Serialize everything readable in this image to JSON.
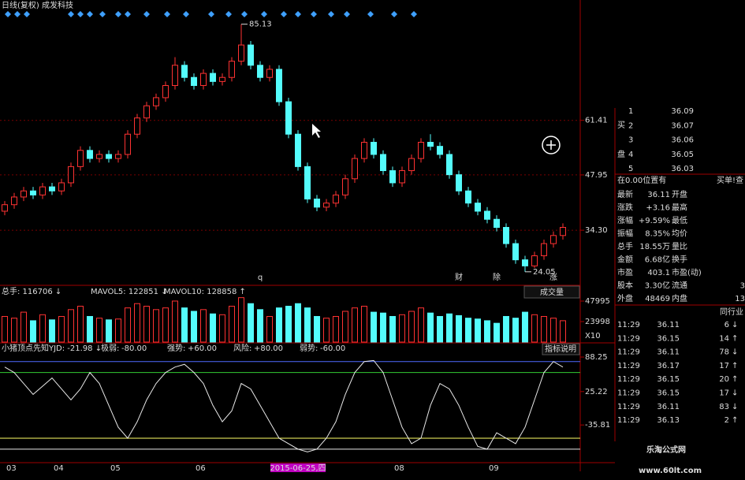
{
  "header": {
    "title": "日线(复权)  成发科技"
  },
  "price_chart": {
    "type": "candlestick",
    "ylim": [
      21.1,
      91.1
    ],
    "yticks": [
      61.41,
      47.95,
      {
        "value": 34.3,
        "label": "34.30"
      }
    ],
    "grid": true,
    "up_color": "#ff3232",
    "down_color": "#54fcfc",
    "candles": [
      [
        39,
        41.5,
        38,
        40.6
      ],
      [
        40.6,
        43.5,
        39.6,
        42.5
      ],
      [
        42.5,
        45,
        41.5,
        44
      ],
      [
        44,
        45,
        42,
        43
      ],
      [
        43,
        46,
        42,
        45
      ],
      [
        45,
        46,
        43,
        44
      ],
      [
        44,
        47,
        43,
        46
      ],
      [
        46,
        51,
        45,
        50
      ],
      [
        50,
        55,
        49,
        54
      ],
      [
        54,
        55,
        51,
        52
      ],
      [
        52,
        54,
        51,
        53
      ],
      [
        53,
        54,
        51,
        52
      ],
      [
        52,
        54,
        51,
        53
      ],
      [
        53,
        59,
        52,
        58
      ],
      [
        58,
        63,
        57,
        62
      ],
      [
        62,
        66,
        61,
        65
      ],
      [
        65,
        68,
        64,
        67
      ],
      [
        67,
        71,
        66,
        70
      ],
      [
        70,
        77,
        69,
        75
      ],
      [
        75,
        76,
        71,
        72
      ],
      [
        72,
        73,
        69,
        70
      ],
      [
        70,
        74,
        69,
        73
      ],
      [
        73,
        74,
        70,
        71
      ],
      [
        71,
        73,
        70,
        72
      ],
      [
        72,
        77,
        71,
        76
      ],
      [
        76,
        85.13,
        75,
        80
      ],
      [
        80,
        81,
        74,
        75
      ],
      [
        75,
        76,
        71,
        72
      ],
      [
        72,
        75,
        71,
        74
      ],
      [
        74,
        75,
        65,
        66
      ],
      [
        66,
        67,
        57,
        58
      ],
      [
        58,
        59,
        49,
        50
      ],
      [
        50,
        51,
        41,
        42
      ],
      [
        42,
        43,
        39,
        40
      ],
      [
        40,
        42,
        39,
        41
      ],
      [
        41,
        44,
        40,
        43
      ],
      [
        43,
        48,
        42,
        47
      ],
      [
        47,
        53,
        46,
        52
      ],
      [
        52,
        57,
        51,
        56
      ],
      [
        56,
        57,
        52,
        53
      ],
      [
        53,
        54,
        48,
        49
      ],
      [
        49,
        50,
        45,
        46
      ],
      [
        46,
        50,
        45,
        49
      ],
      [
        49,
        53,
        48,
        52
      ],
      [
        52,
        57,
        51,
        56
      ],
      [
        56,
        58,
        54,
        55
      ],
      [
        55,
        56,
        52,
        53
      ],
      [
        53,
        54,
        47,
        48
      ],
      [
        48,
        49,
        43,
        44
      ],
      [
        44,
        45,
        40,
        41
      ],
      [
        41,
        42,
        38,
        39
      ],
      [
        39,
        40,
        36,
        37
      ],
      [
        37,
        38,
        34,
        35
      ],
      [
        35,
        36,
        30,
        31
      ],
      [
        31,
        32,
        26,
        27
      ],
      [
        27,
        28,
        24.05,
        25.5
      ],
      [
        25.5,
        29,
        25,
        28
      ],
      [
        28,
        32,
        27,
        31
      ],
      [
        31,
        34,
        30,
        33
      ],
      [
        33,
        36,
        32,
        35
      ]
    ],
    "categories": [
      "03",
      null,
      null,
      null,
      null,
      "04",
      null,
      null,
      null,
      null,
      null,
      "05",
      null,
      null,
      null,
      null,
      null,
      null,
      null,
      null,
      "06",
      null,
      null,
      null,
      null,
      null,
      null,
      null,
      null,
      null,
      null,
      "2015-06-25,四",
      null,
      null,
      null,
      null,
      null,
      null,
      null,
      null,
      null,
      "08",
      null,
      null,
      null,
      null,
      null,
      null,
      null,
      null,
      null,
      "09",
      null,
      null,
      null,
      null,
      null,
      null,
      null,
      null
    ],
    "events": [
      null,
      null,
      null,
      null,
      null,
      null,
      null,
      null,
      null,
      null,
      null,
      null,
      null,
      null,
      null,
      null,
      null,
      null,
      null,
      null,
      null,
      null,
      null,
      null,
      null,
      null,
      null,
      "q",
      null,
      null,
      null,
      null,
      null,
      null,
      null,
      null,
      null,
      null,
      null,
      null,
      null,
      null,
      null,
      null,
      null,
      null,
      null,
      null,
      "财",
      null,
      null,
      null,
      "除",
      null,
      null,
      null,
      null,
      null,
      "涨",
      null
    ]
  },
  "volume_panel": {
    "header": [
      {
        "text": "总手: 116706 ↓",
        "color": "#dddddd"
      },
      {
        "text": "MAVOL5: 122851 ↓",
        "color": "#ffff66"
      },
      {
        "text": "MAVOL10: 128858 ↑",
        "color": "#ffffff"
      }
    ],
    "button": "成交量",
    "unit": "X10",
    "ylim": [
      0,
      60900
    ],
    "yticks": [
      47995,
      23998
    ],
    "values": [
      30000,
      28000,
      35000,
      25000,
      32000,
      26000,
      30000,
      38000,
      42000,
      30000,
      28000,
      26000,
      27000,
      40000,
      45000,
      42000,
      38000,
      40000,
      48000,
      40000,
      36000,
      38000,
      33000,
      32000,
      42000,
      52000,
      45000,
      38000,
      30000,
      40000,
      42000,
      45000,
      40000,
      30000,
      28000,
      30000,
      36000,
      40000,
      42000,
      35000,
      34000,
      30000,
      32000,
      36000,
      40000,
      34000,
      30000,
      33000,
      31000,
      28000,
      27000,
      25000,
      22000,
      30000,
      28000,
      35000,
      32000,
      30000,
      28000,
      25000
    ]
  },
  "indicator_panel": {
    "name": "小猪顶点先知",
    "readout": "YJD: -21.98 ↓",
    "button": "指标说明",
    "ylim": [
      -109,
      107
    ],
    "yticks": [
      88.25,
      25.22,
      -35.81
    ],
    "line_color": "#e8e8e8",
    "levels": [
      {
        "name": "极弱: ",
        "level": {
          "value": -80,
          "label": "-80.00"
        },
        "color": "#e8e8e8"
      },
      {
        "name": "强势: ",
        "level": {
          "value": 60,
          "label": "+60.00"
        },
        "color": "#33cc33"
      },
      {
        "name": "风险: ",
        "level": {
          "value": 80,
          "label": "+80.00"
        },
        "color": "#4f6bff"
      },
      {
        "name": "弱势: ",
        "level": {
          "value": -60,
          "label": "-60.00"
        },
        "color": "#ffff66"
      }
    ],
    "values": [
      70,
      60,
      40,
      20,
      35,
      50,
      30,
      10,
      30,
      60,
      40,
      0,
      -40,
      -60,
      -30,
      10,
      40,
      60,
      70,
      75,
      60,
      40,
      0,
      -30,
      -10,
      40,
      30,
      0,
      -30,
      -60,
      -70,
      -80,
      -85,
      -80,
      -60,
      -30,
      20,
      60,
      80,
      82,
      60,
      10,
      -40,
      -70,
      -60,
      0,
      40,
      30,
      0,
      -40,
      -75,
      -80,
      -50,
      -60,
      -70,
      -40,
      10,
      60,
      80,
      70
    ]
  },
  "quote_panel": {
    "side": [
      "买",
      "盘"
    ],
    "order_book": [
      {
        "level": "1",
        "price": 36.09
      },
      {
        "level": "2",
        "price": 36.07
      },
      {
        "level": "3",
        "price": 36.06
      },
      {
        "level": "4",
        "price": 36.05
      },
      {
        "level": "5",
        "price": 36.03
      }
    ],
    "notice": "在0.00位置有",
    "notice_link": "买单!查",
    "stats": [
      {
        "label": "最新",
        "value": "36.11",
        "label2": "开盘",
        "color": "#ff3232"
      },
      {
        "label": "涨跌",
        "value": "+3.16",
        "label2": "最高",
        "color": "#ff3232"
      },
      {
        "label": "涨幅",
        "value": "+9.59%",
        "label2": "最低",
        "color": "#ff3232"
      },
      {
        "label": "振幅",
        "value": "8.35%",
        "label2": "均价",
        "color": "#ffffff"
      },
      {
        "label": "总手",
        "value": "18.55万",
        "label2": "量比",
        "color": "#ffff66"
      },
      {
        "label": "金额",
        "value": "6.68亿",
        "label2": "换手",
        "color": "#ffff66"
      },
      {
        "label": "市盈",
        "value": "403.1",
        "label2": "市盈(动)",
        "color": "#ffffff"
      },
      {
        "label": "股本",
        "value": "3.30亿",
        "label2": "流通",
        "value2": "3",
        "color": "#ffff66"
      },
      {
        "label": "外盘",
        "value": "48469",
        "label2": "内盘",
        "value2": "13",
        "color": "#ff3232"
      }
    ],
    "ticks_header": "同行业",
    "ticks": [
      {
        "time": "11:29",
        "price": 36.11,
        "volume": 6,
        "arrow": "↓",
        "color": "#33cc33"
      },
      {
        "time": "11:29",
        "price": 36.15,
        "volume": 14,
        "arrow": "↑",
        "color": "#ff3232"
      },
      {
        "time": "11:29",
        "price": 36.11,
        "volume": 78,
        "arrow": "↓",
        "color": "#33cc33"
      },
      {
        "time": "11:29",
        "price": 36.17,
        "volume": 17,
        "arrow": "↑",
        "color": "#ff3232"
      },
      {
        "time": "11:29",
        "price": 36.15,
        "volume": 20,
        "arrow": "↑",
        "color": "#ff3232"
      },
      {
        "time": "11:29",
        "price": 36.15,
        "volume": 17,
        "arrow": "↓",
        "color": "#33cc33"
      },
      {
        "time": "11:29",
        "price": 36.11,
        "volume": 83,
        "arrow": "↓",
        "color": "#33cc33"
      },
      {
        "time": "11:29",
        "price": 36.13,
        "volume": 2,
        "arrow": "↑",
        "color": "#ff3232"
      }
    ]
  },
  "watermark": {
    "title": "乐淘公式网",
    "url": "www.60lt.com"
  }
}
